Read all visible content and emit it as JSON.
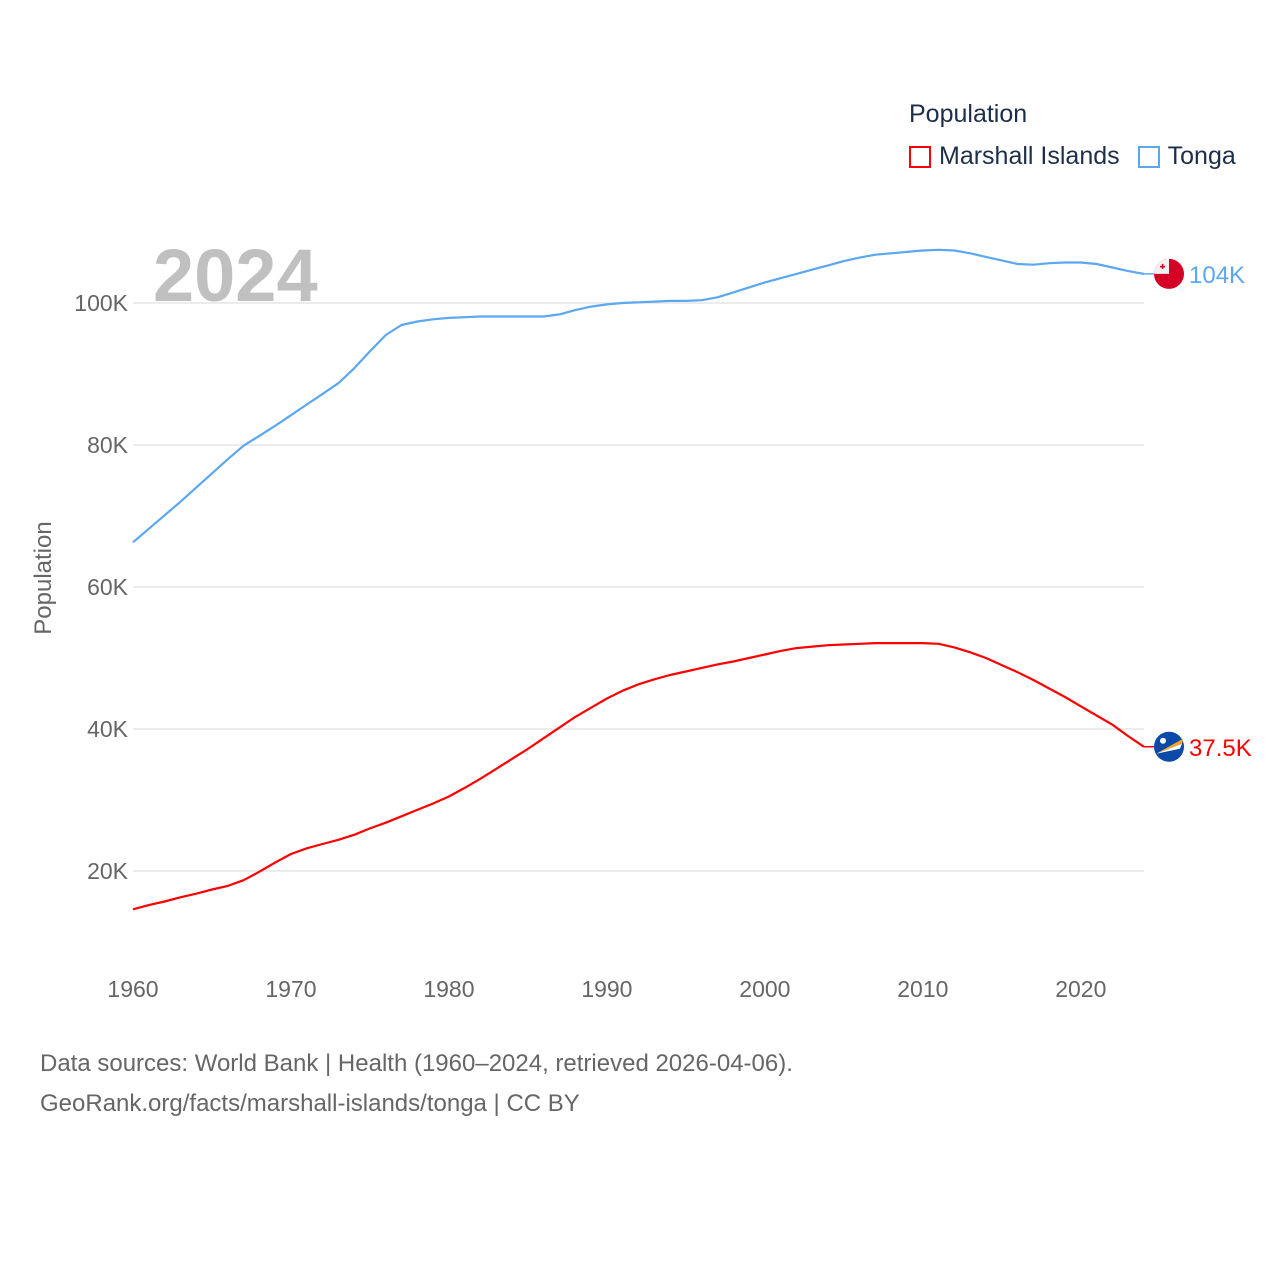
{
  "chart_data": {
    "type": "line",
    "year_label": "2024",
    "ylabel": "Population",
    "xlabel": "",
    "xlim": [
      1960,
      2024
    ],
    "ylim": [
      10000,
      115000
    ],
    "x_ticks": [
      "1960",
      "1970",
      "1980",
      "1990",
      "2000",
      "2010",
      "2020"
    ],
    "y_ticks": [
      {
        "value": 20000,
        "label": "20K"
      },
      {
        "value": 40000,
        "label": "40K"
      },
      {
        "value": 60000,
        "label": "60K"
      },
      {
        "value": 80000,
        "label": "80K"
      },
      {
        "value": 100000,
        "label": "100K"
      }
    ],
    "grid": true,
    "legend": {
      "title": "Population",
      "placement": "top-right"
    },
    "x": [
      1960,
      1961,
      1962,
      1963,
      1964,
      1965,
      1966,
      1967,
      1968,
      1969,
      1970,
      1971,
      1972,
      1973,
      1974,
      1975,
      1976,
      1977,
      1978,
      1979,
      1980,
      1981,
      1982,
      1983,
      1984,
      1985,
      1986,
      1987,
      1988,
      1989,
      1990,
      1991,
      1992,
      1993,
      1994,
      1995,
      1996,
      1997,
      1998,
      1999,
      2000,
      2001,
      2002,
      2003,
      2004,
      2005,
      2006,
      2007,
      2008,
      2009,
      2010,
      2011,
      2012,
      2013,
      2014,
      2015,
      2016,
      2017,
      2018,
      2019,
      2020,
      2021,
      2022,
      2023,
      2024
    ],
    "series": [
      {
        "name": "Marshall Islands",
        "color": "#ff0000",
        "end_label": "37.5K",
        "flag": "marshall-islands-flag",
        "values": [
          14600,
          15200,
          15700,
          16300,
          16800,
          17400,
          17900,
          18700,
          19900,
          21200,
          22400,
          23200,
          23800,
          24400,
          25100,
          26000,
          26800,
          27700,
          28600,
          29500,
          30500,
          31700,
          33000,
          34400,
          35800,
          37200,
          38700,
          40200,
          41700,
          43000,
          44300,
          45400,
          46300,
          47000,
          47600,
          48100,
          48600,
          49100,
          49500,
          50000,
          50500,
          51000,
          51400,
          51600,
          51800,
          51900,
          52000,
          52100,
          52100,
          52100,
          52100,
          52000,
          51500,
          50800,
          50000,
          49000,
          48000,
          46900,
          45700,
          44500,
          43200,
          41900,
          40600,
          39000,
          37500
        ]
      },
      {
        "name": "Tonga",
        "color": "#5ba7f0",
        "end_label": "104K",
        "flag": "tonga-flag",
        "values": [
          66300,
          68200,
          70100,
          72000,
          74000,
          76000,
          78000,
          79900,
          81300,
          82700,
          84200,
          85700,
          87200,
          88700,
          90800,
          93200,
          95500,
          96900,
          97400,
          97700,
          97900,
          98000,
          98100,
          98100,
          98100,
          98100,
          98100,
          98400,
          99000,
          99500,
          99800,
          100000,
          100100,
          100200,
          100300,
          100300,
          100400,
          100800,
          101500,
          102200,
          102900,
          103500,
          104100,
          104700,
          105300,
          105900,
          106400,
          106800,
          107000,
          107200,
          107400,
          107500,
          107400,
          107000,
          106500,
          106000,
          105500,
          105400,
          105600,
          105700,
          105700,
          105500,
          105000,
          104500,
          104100
        ]
      }
    ]
  },
  "footer": {
    "line1": "Data sources: World Bank | Health (1960–2024, retrieved 2026-04-06).",
    "line2": "GeoRank.org/facts/marshall-islands/tonga | CC BY"
  }
}
